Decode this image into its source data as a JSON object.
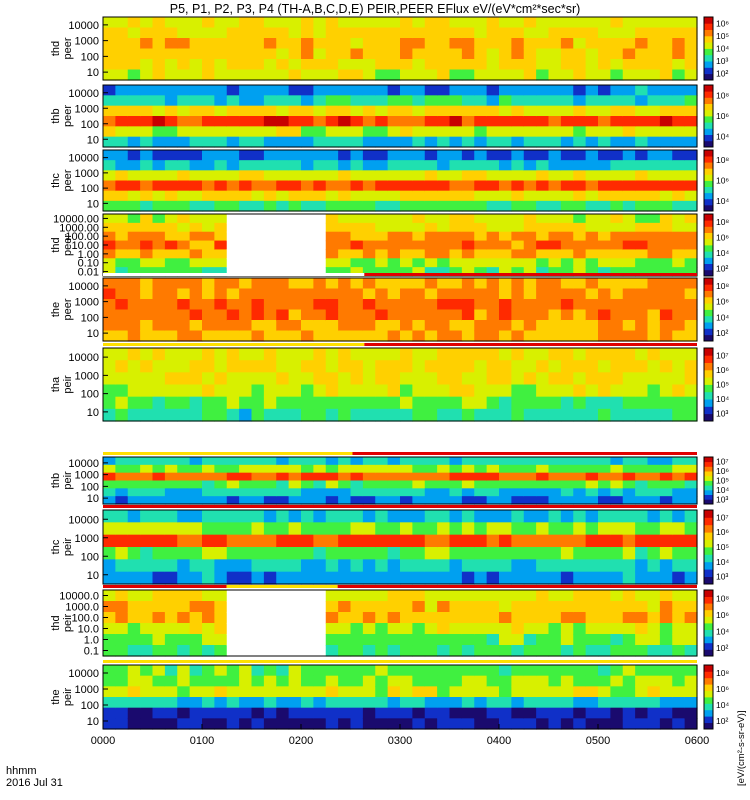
{
  "title": "P5, P1, P2, P3, P4 (TH-A,B,C,D,E) PEIR,PEER EFlux eV/(eV*cm²*sec*sr)",
  "colorbar_unit_label": "[eV/(cm²-s-sr-eV)]",
  "time_axis": {
    "label": "hhmm",
    "date": "2016 Jul 31",
    "ticks": [
      "0000",
      "0100",
      "0200",
      "0300",
      "0400",
      "0500",
      "0600"
    ]
  },
  "colors": {
    "background": "#ffffff",
    "nodata": "#000000",
    "spectrogram_scale": [
      "#1a0a6e",
      "#1030c8",
      "#00a0f0",
      "#20e0b0",
      "#40f040",
      "#d8f000",
      "#ffd000",
      "#ff7a00",
      "#ff2a00",
      "#c80000"
    ]
  },
  "chart_data": [
    {
      "type": "heatmap",
      "probe": "thd",
      "species": "peer",
      "ylabel_1": "thd",
      "ylabel_2": "peer",
      "yscale": "log",
      "yticks": [
        "10",
        "100",
        "1000",
        "10000"
      ],
      "cb_ticks": [
        "10²",
        "10³",
        "10⁴",
        "10⁵",
        "10⁶"
      ],
      "gaps": [],
      "profile": [
        0.55,
        0.62,
        0.66,
        0.68,
        0.64,
        0.58
      ],
      "indicator": null
    },
    {
      "type": "heatmap",
      "probe": "thb",
      "species": "peer",
      "ylabel_1": "thb",
      "ylabel_2": "peer",
      "yscale": "log",
      "yticks": [
        "10",
        "100",
        "1000",
        "10000"
      ],
      "cb_ticks": [
        "10⁴",
        "10⁶",
        "10⁸"
      ],
      "gaps": [],
      "profile": [
        0.3,
        0.55,
        0.88,
        0.62,
        0.34,
        0.2
      ],
      "indicator": null
    },
    {
      "type": "heatmap",
      "probe": "thc",
      "species": "peer",
      "ylabel_1": "thc",
      "ylabel_2": "peer",
      "yscale": "log",
      "yticks": [
        "10",
        "100",
        "1000",
        "10000"
      ],
      "cb_ticks": [
        "10⁴",
        "10⁶",
        "10⁸"
      ],
      "gaps": [],
      "profile": [
        0.4,
        0.62,
        0.86,
        0.58,
        0.3,
        0.16
      ],
      "indicator": null
    },
    {
      "type": "heatmap",
      "probe": "thd",
      "species": "peer",
      "ylabel_1": "thd",
      "ylabel_2": "peer",
      "yscale": "log",
      "yticks": [
        "0.01",
        "0.10",
        "1.00",
        "10.00",
        "100.00",
        "1000.00",
        "10000.00"
      ],
      "cb_ticks": [
        "10²",
        "10⁴",
        "10⁶",
        "10⁸"
      ],
      "gaps": [
        [
          0.215,
          0.385
        ]
      ],
      "profile": [
        0.45,
        0.5,
        0.7,
        0.78,
        0.74,
        0.64,
        0.56
      ],
      "indicator": null
    },
    {
      "type": "heatmap",
      "probe": "the",
      "species": "peer",
      "ylabel_1": "the",
      "ylabel_2": "peer",
      "yscale": "log",
      "yticks": [
        "10",
        "100",
        "1000",
        "10000"
      ],
      "cb_ticks": [
        "10²",
        "10⁴",
        "10⁶",
        "10⁸"
      ],
      "gaps": [],
      "profile": [
        0.7,
        0.74,
        0.78,
        0.8,
        0.76,
        0.72
      ],
      "indicator": [
        {
          "start": 0,
          "end": 0.44,
          "color": "#ffffff"
        },
        {
          "start": 0.44,
          "end": 1,
          "color": "#e00000"
        }
      ]
    },
    {
      "type": "heatmap",
      "probe": "tha",
      "species": "peir",
      "ylabel_1": "tha",
      "ylabel_2": "peir",
      "yscale": "log",
      "yticks": [
        "10",
        "100",
        "1000",
        "10000"
      ],
      "cb_ticks": [
        "10³",
        "10⁴",
        "10⁵",
        "10⁶",
        "10⁷"
      ],
      "gaps": [],
      "profile": [
        0.35,
        0.45,
        0.55,
        0.6,
        0.62,
        0.58
      ],
      "indicator": [
        {
          "start": 0,
          "end": 0.44,
          "color": "#ffe000"
        },
        {
          "start": 0.44,
          "end": 1,
          "color": "#e00000"
        }
      ]
    },
    {
      "type": "heatmap",
      "probe": "thb",
      "species": "peir",
      "ylabel_1": "thb",
      "ylabel_2": "peir",
      "yscale": "log",
      "yticks": [
        "10",
        "100",
        "1000",
        "10000"
      ],
      "cb_ticks": [
        "10³",
        "10⁴",
        "10⁵",
        "10⁶",
        "10⁷"
      ],
      "gaps": [],
      "profile": [
        0.2,
        0.3,
        0.45,
        0.82,
        0.5,
        0.3
      ],
      "indicator": [
        {
          "start": 0,
          "end": 0.42,
          "color": "#ffe000"
        },
        {
          "start": 0.42,
          "end": 1,
          "color": "#e00000"
        }
      ]
    },
    {
      "type": "heatmap",
      "probe": "thc",
      "species": "peir",
      "ylabel_1": "thc",
      "ylabel_2": "peir",
      "yscale": "log",
      "yticks": [
        "10",
        "100",
        "1000",
        "10000"
      ],
      "cb_ticks": [
        "10³",
        "10⁴",
        "10⁵",
        "10⁶",
        "10⁷"
      ],
      "gaps": [],
      "profile": [
        0.2,
        0.3,
        0.45,
        0.85,
        0.5,
        0.3
      ],
      "indicator": [
        {
          "start": 0,
          "end": 1,
          "color": "#e00000"
        }
      ]
    },
    {
      "type": "heatmap",
      "probe": "thd",
      "species": "peir",
      "ylabel_1": "thd",
      "ylabel_2": "peir",
      "yscale": "log",
      "yticks": [
        "0.1",
        "1.0",
        "10.0",
        "100.0",
        "1000.0",
        "10000.0"
      ],
      "cb_ticks": [
        "10²",
        "10⁴",
        "10⁶",
        "10⁸"
      ],
      "gaps": [
        [
          0.215,
          0.385
        ]
      ],
      "profile": [
        0.4,
        0.45,
        0.55,
        0.7,
        0.68,
        0.6
      ],
      "indicator": [
        {
          "start": 0,
          "end": 0.208,
          "color": "#e00000"
        },
        {
          "start": 0.208,
          "end": 0.395,
          "color": "#ffe000"
        },
        {
          "start": 0.395,
          "end": 1,
          "color": "#e00000"
        }
      ]
    },
    {
      "type": "heatmap",
      "probe": "the",
      "species": "peir",
      "ylabel_1": "the",
      "ylabel_2": "peir",
      "yscale": "log",
      "yticks": [
        "10",
        "100",
        "1000",
        "10000"
      ],
      "cb_ticks": [
        "10²",
        "10⁴",
        "10⁶",
        "10⁸"
      ],
      "gaps": [],
      "profile": [
        0.05,
        0.08,
        0.3,
        0.55,
        0.5,
        0.45
      ],
      "indicator": [
        {
          "start": 0,
          "end": 1,
          "color": "#ffe000"
        }
      ]
    }
  ]
}
